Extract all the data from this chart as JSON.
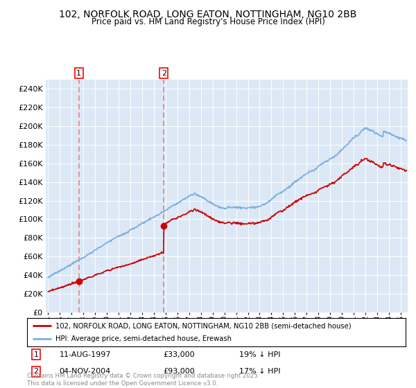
{
  "title": "102, NORFOLK ROAD, LONG EATON, NOTTINGHAM, NG10 2BB",
  "subtitle": "Price paid vs. HM Land Registry's House Price Index (HPI)",
  "legend_line1": "102, NORFOLK ROAD, LONG EATON, NOTTINGHAM, NG10 2BB (semi-detached house)",
  "legend_line2": "HPI: Average price, semi-detached house, Erewash",
  "annotation1_date": "11-AUG-1997",
  "annotation1_price": "£33,000",
  "annotation1_hpi": "19% ↓ HPI",
  "annotation2_date": "04-NOV-2004",
  "annotation2_price": "£93,000",
  "annotation2_hpi": "17% ↓ HPI",
  "footnote": "Contains HM Land Registry data © Crown copyright and database right 2025.\nThis data is licensed under the Open Government Licence v3.0.",
  "sale1_year": 1997.617,
  "sale1_price": 33000,
  "sale2_year": 2004.843,
  "sale2_price": 93000,
  "red_color": "#cc0000",
  "blue_color": "#7aade0",
  "bg_color": "#dce8f5",
  "plot_bg": "#ffffff",
  "vline_color": "#e87878",
  "ylim_max": 250000,
  "xlim_start": 1994.8,
  "xlim_end": 2025.6
}
